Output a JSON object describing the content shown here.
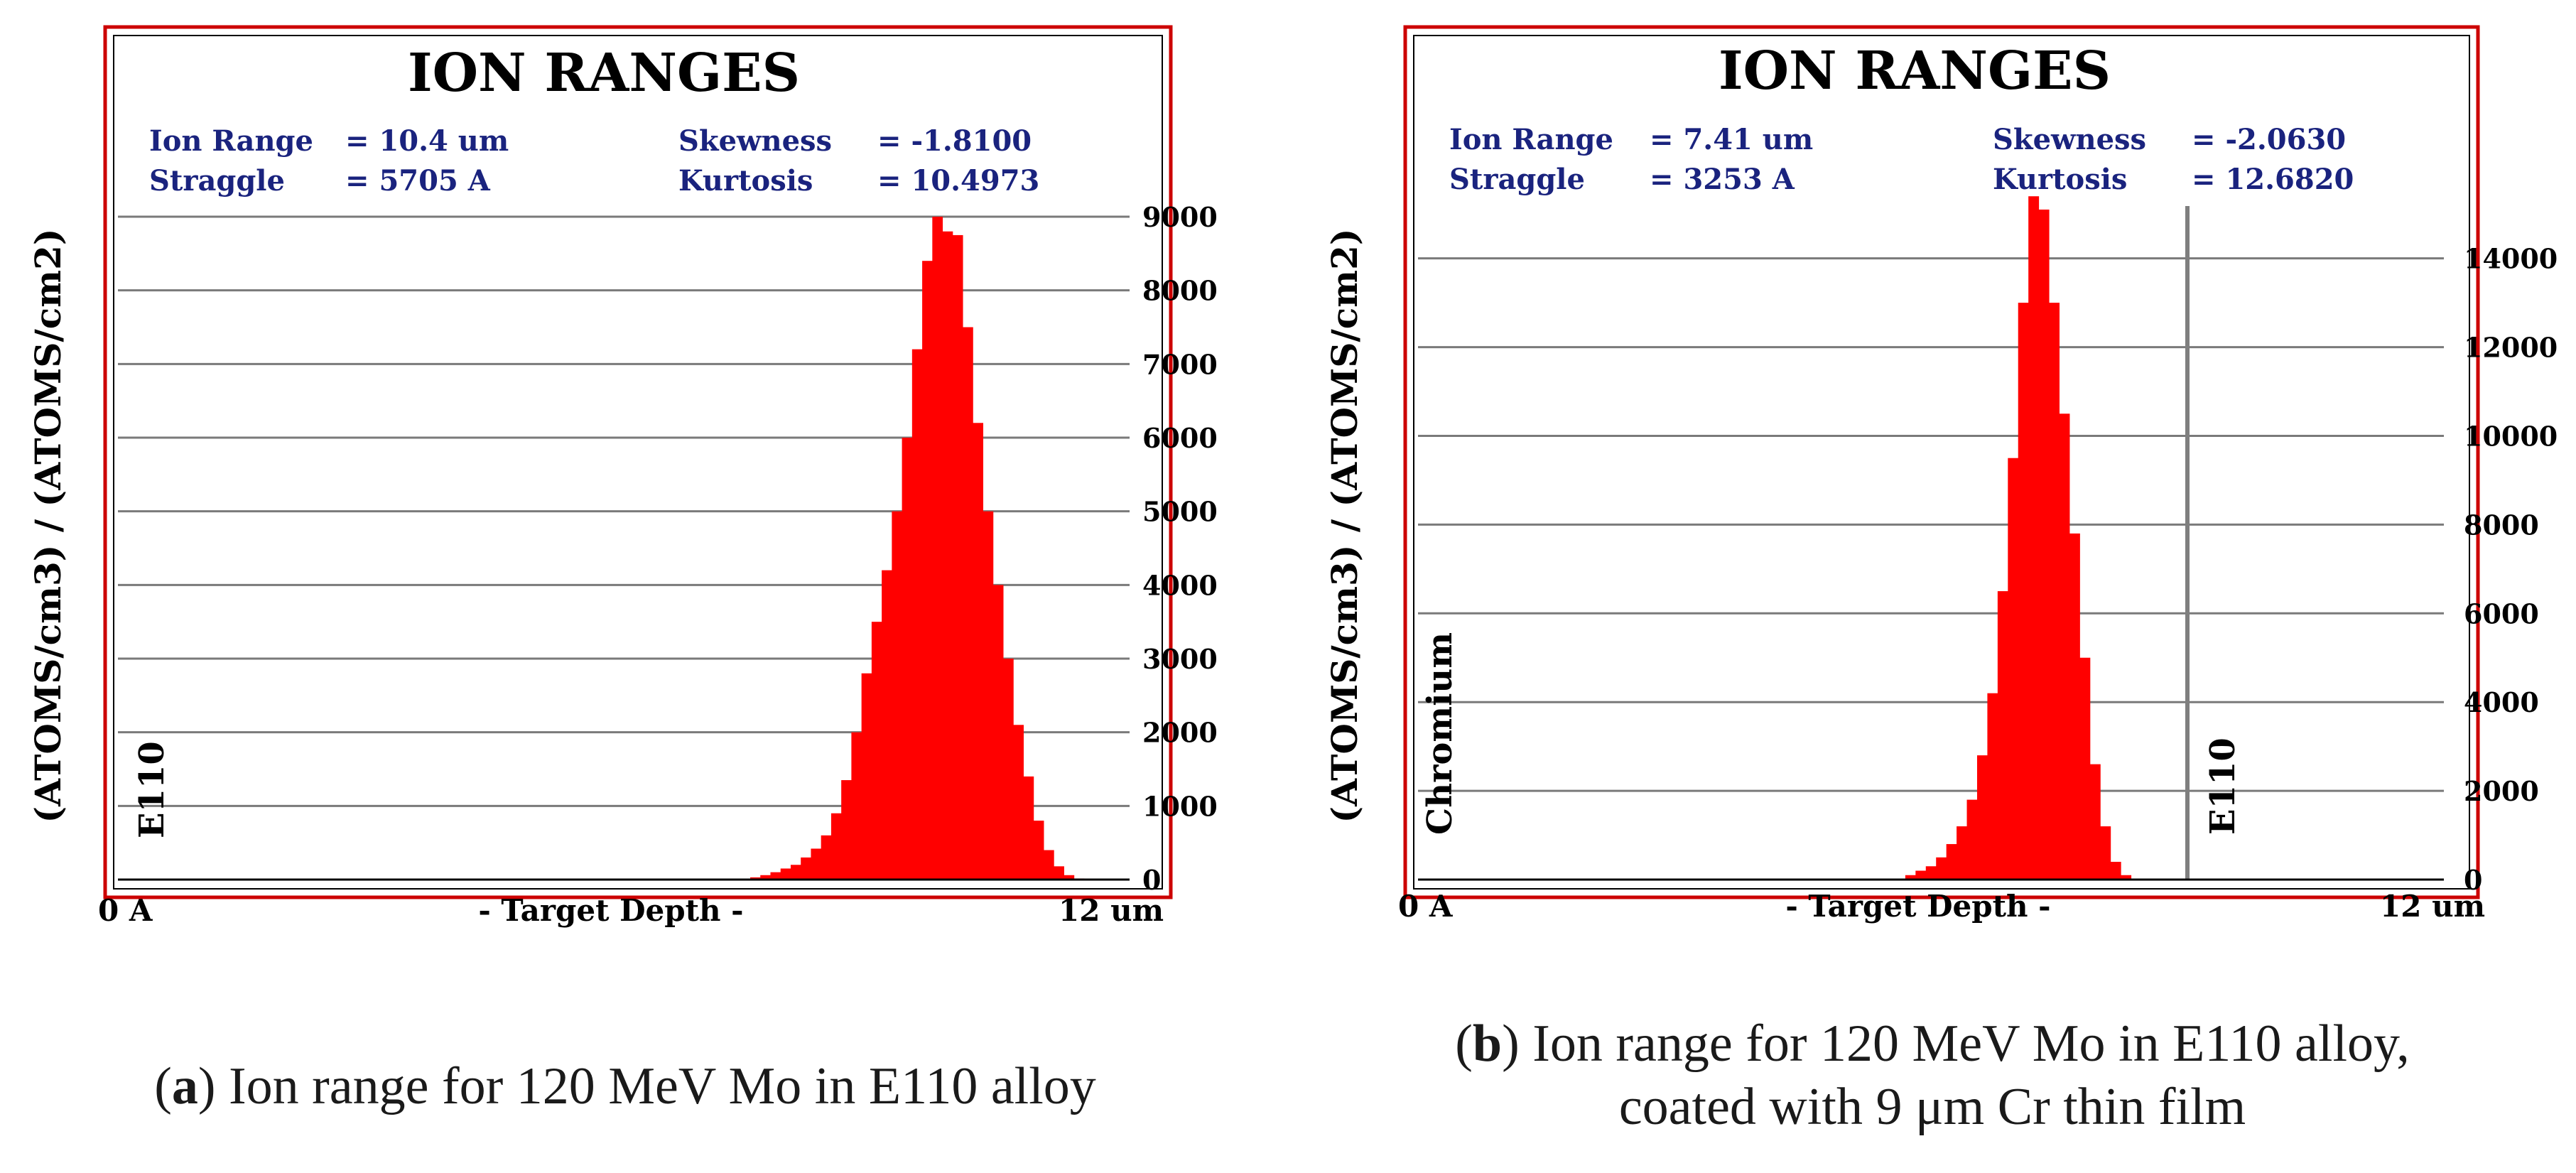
{
  "figure_a": {
    "chart_data": {
      "type": "bar",
      "title": "ION RANGES",
      "stats": {
        "ion_range_label": "Ion Range",
        "ion_range_value": "= 10.4 um",
        "straggle_label": "Straggle",
        "straggle_value": "= 5705 A",
        "skewness_label": "Skewness",
        "skewness_value": "= -1.8100",
        "kurtosis_label": "Kurtosis",
        "kurtosis_value": "= 10.4973"
      },
      "ylabel": "(ATOMS/cm3) / (ATOMS/cm2)",
      "xlabel": "- Target Depth -",
      "x_start_label": "0 A",
      "x_end_label": "12 um",
      "xlim": [
        0,
        12
      ],
      "ylim": [
        0,
        9000
      ],
      "y_ticks": [
        "0",
        "1000",
        "2000",
        "3000",
        "4000",
        "5000",
        "6000",
        "7000",
        "8000",
        "9000"
      ],
      "material_labels": [
        "E110"
      ],
      "bin_width_um": 0.12,
      "x": [
        7.5,
        7.62,
        7.74,
        7.86,
        7.98,
        8.1,
        8.22,
        8.34,
        8.46,
        8.58,
        8.7,
        8.82,
        8.94,
        9.06,
        9.18,
        9.3,
        9.42,
        9.54,
        9.66,
        9.78,
        9.9,
        10.02,
        10.14,
        10.26,
        10.38,
        10.5,
        10.62,
        10.74,
        10.86,
        10.98,
        11.1,
        11.22,
        11.34
      ],
      "values": [
        30,
        60,
        100,
        150,
        200,
        300,
        420,
        600,
        900,
        1350,
        2000,
        2800,
        3500,
        4200,
        5000,
        6000,
        7200,
        8400,
        9000,
        8800,
        8750,
        7500,
        6200,
        5000,
        4000,
        3000,
        2100,
        1400,
        800,
        400,
        180,
        60,
        15
      ],
      "colors": {
        "bars": "#ff0000",
        "frame": "#cc0000",
        "stats_text": "#1a237e",
        "grid": "#7a7a7a"
      }
    },
    "caption_letter": "a",
    "caption_text": "Ion range for 120 MeV Mo in E110 alloy"
  },
  "figure_b": {
    "chart_data": {
      "type": "bar",
      "title": "ION RANGES",
      "stats": {
        "ion_range_label": "Ion Range",
        "ion_range_value": "= 7.41 um",
        "straggle_label": "Straggle",
        "straggle_value": "= 3253 A",
        "skewness_label": "Skewness",
        "skewness_value": "= -2.0630",
        "kurtosis_label": "Kurtosis",
        "kurtosis_value": "= 12.6820"
      },
      "ylabel": "(ATOMS/cm3) / (ATOMS/cm2)",
      "xlabel": "- Target Depth -",
      "x_start_label": "0 A",
      "x_end_label": "12 um",
      "xlim": [
        0,
        12
      ],
      "ylim": [
        0,
        15500
      ],
      "y_ticks": [
        "0",
        "2000",
        "4000",
        "6000",
        "8000",
        "10000",
        "12000",
        "14000"
      ],
      "y_tick_values": [
        0,
        2000,
        4000,
        6000,
        8000,
        10000,
        12000,
        14000
      ],
      "layer_boundary_um": 9,
      "material_labels": [
        "Chromium",
        "E110"
      ],
      "bin_width_um": 0.12,
      "x": [
        5.7,
        5.82,
        5.94,
        6.06,
        6.18,
        6.3,
        6.42,
        6.54,
        6.66,
        6.78,
        6.9,
        7.02,
        7.14,
        7.26,
        7.38,
        7.5,
        7.62,
        7.74,
        7.86,
        7.98,
        8.1,
        8.22
      ],
      "values": [
        100,
        200,
        300,
        500,
        800,
        1200,
        1800,
        2800,
        4200,
        6500,
        9500,
        13000,
        15400,
        15100,
        13000,
        10500,
        7800,
        5000,
        2600,
        1200,
        400,
        100
      ],
      "colors": {
        "bars": "#ff0000",
        "frame": "#cc0000",
        "stats_text": "#1a237e",
        "grid": "#7a7a7a",
        "boundary": "#7f7f7f"
      }
    },
    "caption_letter": "b",
    "caption_text": "Ion range for 120 MeV Mo in E110 alloy,",
    "caption_text_line2": "coated with 9 μm Cr thin film"
  }
}
